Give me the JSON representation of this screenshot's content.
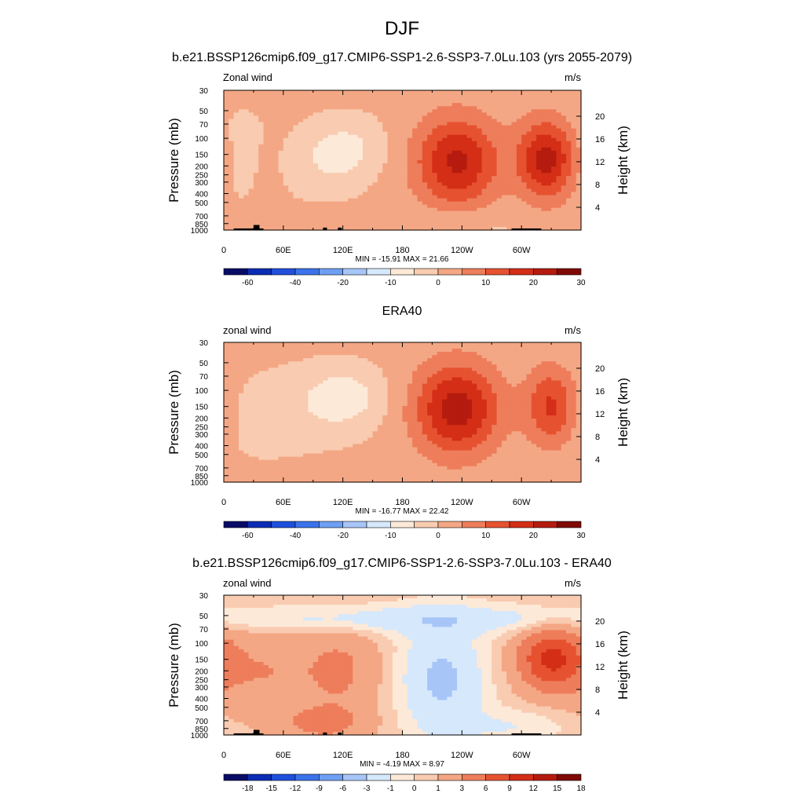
{
  "page": {
    "title": "DJF"
  },
  "colors": {
    "neg": [
      "#080c66",
      "#0b2db5",
      "#1f4fdb",
      "#3a72eb",
      "#6f9ff3",
      "#a7c5f7",
      "#d6e8fb"
    ],
    "pos": [
      "#fde9d8",
      "#f9cbb0",
      "#f4a784",
      "#ee7d5b",
      "#e65230",
      "#d42e17",
      "#b51b0e",
      "#7f0a05"
    ],
    "land": "#000000"
  },
  "chart_data": [
    {
      "type": "contour",
      "title": "b.e21.BSSP126cmip6.f09_g17.CMIP6-SSP1-2.6-SSP3-7.0Lu.103 (yrs 2055-2079)",
      "left_label": "Zonal wind",
      "right_label": "m/s",
      "ylabel": "Pressure (mb)",
      "ylabel_right": "Height (km)",
      "x_ticks": [
        "0",
        "60E",
        "120E",
        "180",
        "120W",
        "60W"
      ],
      "x_tick_lon": [
        0,
        60,
        120,
        180,
        240,
        300
      ],
      "xlim": [
        0,
        360
      ],
      "y_ticks": [
        "30",
        "50",
        "70",
        "100",
        "150",
        "200",
        "250",
        "300",
        "400",
        "500",
        "700",
        "850",
        "1000"
      ],
      "y_tick_values": [
        30,
        50,
        70,
        100,
        150,
        200,
        250,
        300,
        400,
        500,
        700,
        850,
        1000
      ],
      "ylim": [
        30,
        1000
      ],
      "y_scale": "log",
      "height_ticks": [
        "4",
        "8",
        "12",
        "16",
        "20"
      ],
      "height_values_km": [
        4,
        8,
        12,
        16,
        20
      ],
      "stats": "MIN = -15.91  MAX =  21.66",
      "colorbar_labels": [
        "-60",
        "-40",
        "-20",
        "-10",
        "0",
        "10",
        "20",
        "30"
      ],
      "levels": [
        -60,
        -50,
        -40,
        -30,
        -20,
        -15,
        -10,
        -5,
        0,
        5,
        10,
        15,
        20,
        25,
        30
      ],
      "features": [
        {
          "lon": 120,
          "p": 130,
          "v": -8,
          "dlon": 28,
          "dz": 0.5
        },
        {
          "lon": 235,
          "p": 180,
          "v": 20,
          "dlon": 30,
          "dz": 0.8
        },
        {
          "lon": 325,
          "p": 170,
          "v": 21,
          "dlon": 20,
          "dz": 0.7
        },
        {
          "lon": 100,
          "p": 260,
          "v": -3,
          "dlon": 25,
          "dz": 0.5
        },
        {
          "lon": 15,
          "p": 180,
          "v": -3,
          "dlon": 12,
          "dz": 0.7
        },
        {
          "lon": 130,
          "p": 850,
          "v": 4,
          "dlon": 45,
          "dz": 0.25
        },
        {
          "lon": 240,
          "p": 850,
          "v": -3,
          "dlon": 45,
          "dz": 0.3
        },
        {
          "lon": 20,
          "p": 80,
          "v": -2,
          "dlon": 15,
          "dz": 0.3
        }
      ],
      "base": 1
    },
    {
      "type": "contour",
      "title": "ERA40",
      "left_label": "zonal wind",
      "right_label": "m/s",
      "ylabel": "Pressure (mb)",
      "ylabel_right": "Height (km)",
      "x_ticks": [
        "0",
        "60E",
        "120E",
        "180",
        "120W",
        "60W"
      ],
      "x_tick_lon": [
        0,
        60,
        120,
        180,
        240,
        300
      ],
      "xlim": [
        0,
        360
      ],
      "y_ticks": [
        "30",
        "50",
        "70",
        "100",
        "150",
        "200",
        "250",
        "300",
        "400",
        "500",
        "700",
        "850",
        "1000"
      ],
      "y_tick_values": [
        30,
        50,
        70,
        100,
        150,
        200,
        250,
        300,
        400,
        500,
        700,
        850,
        1000
      ],
      "ylim": [
        30,
        1000
      ],
      "y_scale": "log",
      "height_ticks": [
        "4",
        "8",
        "12",
        "16",
        "20"
      ],
      "height_values_km": [
        4,
        8,
        12,
        16,
        20
      ],
      "stats": "MIN = -16.77  MAX =  22.42",
      "colorbar_labels": [
        "-60",
        "-40",
        "-20",
        "-10",
        "0",
        "10",
        "20",
        "30"
      ],
      "levels": [
        -60,
        -50,
        -40,
        -30,
        -20,
        -15,
        -10,
        -5,
        0,
        5,
        10,
        15,
        20,
        25,
        30
      ],
      "features": [
        {
          "lon": 120,
          "p": 120,
          "v": -9,
          "dlon": 28,
          "dz": 0.5
        },
        {
          "lon": 235,
          "p": 160,
          "v": 22,
          "dlon": 30,
          "dz": 0.8
        },
        {
          "lon": 330,
          "p": 150,
          "v": 15,
          "dlon": 18,
          "dz": 0.7
        },
        {
          "lon": 60,
          "p": 200,
          "v": -3,
          "dlon": 45,
          "dz": 0.8
        },
        {
          "lon": 120,
          "p": 800,
          "v": 3,
          "dlon": 45,
          "dz": 0.25
        }
      ],
      "base": 1
    },
    {
      "type": "contour",
      "title": "b.e21.BSSP126cmip6.f09_g17.CMIP6-SSP1-2.6-SSP3-7.0Lu.103 - ERA40",
      "left_label": "zonal wind",
      "right_label": "m/s",
      "ylabel": "Pressure (mb)",
      "ylabel_right": "Height (km)",
      "x_ticks": [
        "0",
        "60E",
        "120E",
        "180",
        "120W",
        "60W"
      ],
      "x_tick_lon": [
        0,
        60,
        120,
        180,
        240,
        300
      ],
      "xlim": [
        0,
        360
      ],
      "y_ticks": [
        "30",
        "50",
        "70",
        "100",
        "150",
        "200",
        "250",
        "300",
        "400",
        "500",
        "700",
        "850",
        "1000"
      ],
      "y_tick_values": [
        30,
        50,
        70,
        100,
        150,
        200,
        250,
        300,
        400,
        500,
        700,
        850,
        1000
      ],
      "ylim": [
        30,
        1000
      ],
      "y_scale": "log",
      "height_ticks": [
        "4",
        "8",
        "12",
        "16",
        "20"
      ],
      "height_values_km": [
        4,
        8,
        12,
        16,
        20
      ],
      "stats": "MIN =  -4.19  MAX =   8.97",
      "colorbar_labels": [
        "-18",
        "-15",
        "-12",
        "-9",
        "-6",
        "-3",
        "-1",
        "0",
        "1",
        "3",
        "6",
        "9",
        "12",
        "15",
        "18"
      ],
      "levels": [
        -21,
        -18,
        -15,
        -12,
        -9,
        -6,
        -3,
        -1,
        0,
        1,
        3,
        6,
        9,
        12,
        15,
        18
      ],
      "features": [
        {
          "lon": 330,
          "p": 150,
          "v": 9,
          "dlon": 22,
          "dz": 0.5
        },
        {
          "lon": 40,
          "p": 200,
          "v": 2.5,
          "dlon": 45,
          "dz": 0.8
        },
        {
          "lon": 120,
          "p": 200,
          "v": 2.5,
          "dlon": 25,
          "dz": 0.8
        },
        {
          "lon": 220,
          "p": 250,
          "v": -4,
          "dlon": 28,
          "dz": 1.0
        },
        {
          "lon": 180,
          "p": 55,
          "v": -2.5,
          "dlon": 180,
          "dz": 0.25
        },
        {
          "lon": 100,
          "p": 750,
          "v": 3,
          "dlon": 30,
          "dz": 0.3
        },
        {
          "lon": 290,
          "p": 800,
          "v": -1.5,
          "dlon": 40,
          "dz": 0.3
        }
      ],
      "base": 0.5
    }
  ]
}
